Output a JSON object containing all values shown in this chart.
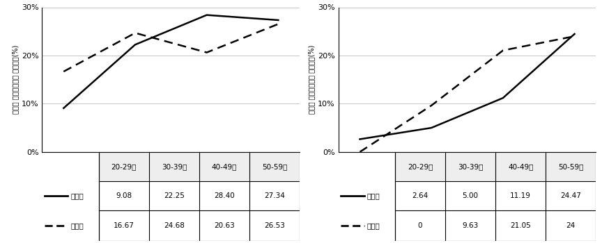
{
  "categories": [
    "20-29세",
    "30-39세",
    "40-49세",
    "50-59세"
  ],
  "male": {
    "ilbanin": [
      9.08,
      22.25,
      28.4,
      27.34
    ],
    "gongmuwon": [
      16.67,
      24.68,
      20.63,
      26.53
    ],
    "ylabel": "남성의 이상지질혈증 유소건률(%)"
  },
  "female": {
    "ilbanin": [
      2.64,
      5.0,
      11.19,
      24.47
    ],
    "gongmuwon": [
      0,
      9.63,
      21.05,
      24
    ],
    "ylabel": "여성의 이상지질혈증 유소건률(%)"
  },
  "ylim": [
    0,
    30
  ],
  "yticks": [
    0,
    10,
    20,
    30
  ],
  "yticklabels": [
    "0%",
    "10%",
    "20%",
    "30%"
  ],
  "line_color": "#000000",
  "ilbanin_label": "일반인",
  "gongmuwon_label": "공무원",
  "cell_values_male_ilbanin": [
    "9.08",
    "22.25",
    "28.40",
    "27.34"
  ],
  "cell_values_male_gongmuwon": [
    "16.67",
    "24.68",
    "20.63",
    "26.53"
  ],
  "cell_values_female_ilbanin": [
    "2.64",
    "5.00",
    "11.19",
    "24.47"
  ],
  "cell_values_female_gongmuwon": [
    "0",
    "9.63",
    "21.05",
    "24"
  ]
}
